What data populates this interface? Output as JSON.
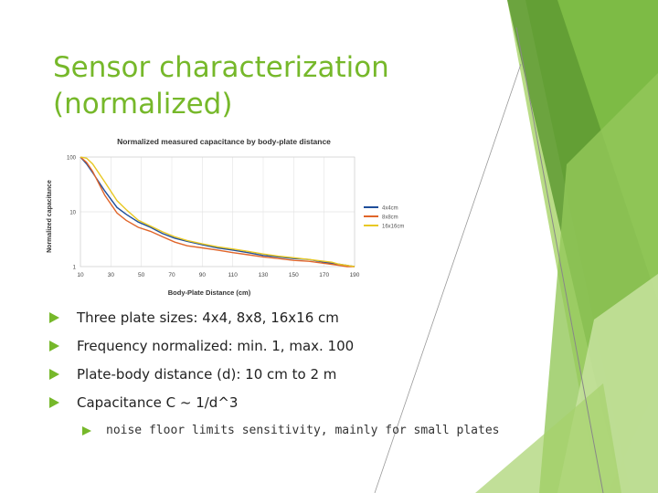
{
  "slide": {
    "title_lines": [
      "Sensor characterization",
      "(normalized)"
    ],
    "bullets": [
      "Three plate sizes: 4x4, 8x8, 16x16 cm",
      "Frequency normalized: min. 1, max. 100",
      "Plate-body distance (d): 10 cm to 2 m",
      "Capacitance C ~ 1/d^3"
    ],
    "sub_bullet": "noise floor limits sensitivity, mainly for small plates",
    "colors": {
      "accent": "#76B82A",
      "dark_green": "#5A9A2E",
      "light_green": "#B6D97A"
    }
  },
  "chart_data": {
    "type": "line",
    "title": "Normalized measured capacitance by body-plate distance",
    "xlabel": "Body-Plate Distance (cm)",
    "ylabel": "Normalized capacitance",
    "x_categories": [
      "10",
      "30",
      "50",
      "70",
      "90",
      "110",
      "130",
      "150",
      "170",
      "190"
    ],
    "y_scale": "log",
    "y_ticks": [
      "100",
      "10",
      "1"
    ],
    "ylim": [
      1,
      100
    ],
    "grid": true,
    "legend_position": "right",
    "series": [
      {
        "name": "4x4cm",
        "color": "#1F4E9A",
        "values": [
          100,
          75,
          52,
          24,
          12,
          9,
          6.5,
          5.2,
          4,
          3.3,
          2.9,
          2.5,
          2.2,
          2.0,
          1.8,
          1.6,
          1.5,
          1.4,
          1.35,
          1.2,
          1.15,
          1.1,
          1.05,
          1.0
        ],
        "x": [
          10,
          14,
          18,
          26,
          34,
          40,
          48,
          56,
          64,
          72,
          80,
          90,
          100,
          110,
          120,
          130,
          140,
          150,
          160,
          170,
          175,
          180,
          185,
          190
        ]
      },
      {
        "name": "8x8cm",
        "color": "#E0652A",
        "values": [
          100,
          80,
          55,
          20,
          9.5,
          7,
          5.2,
          4.4,
          3.5,
          2.8,
          2.4,
          2.2,
          2.0,
          1.8,
          1.65,
          1.5,
          1.4,
          1.3,
          1.25,
          1.15,
          1.1,
          1.05,
          1.0,
          1.0
        ],
        "x": [
          10,
          14,
          18,
          26,
          34,
          40,
          48,
          56,
          64,
          72,
          80,
          90,
          100,
          110,
          120,
          130,
          140,
          150,
          160,
          170,
          175,
          180,
          185,
          190
        ]
      },
      {
        "name": "16x16cm",
        "color": "#E8C823",
        "values": [
          100,
          95,
          75,
          35,
          16,
          11,
          7,
          5.5,
          4.3,
          3.5,
          3.0,
          2.6,
          2.3,
          2.1,
          1.9,
          1.7,
          1.55,
          1.45,
          1.35,
          1.25,
          1.2,
          1.1,
          1.05,
          1.0
        ],
        "x": [
          10,
          14,
          18,
          26,
          34,
          40,
          48,
          56,
          64,
          72,
          80,
          90,
          100,
          110,
          120,
          130,
          140,
          150,
          160,
          170,
          175,
          180,
          185,
          190
        ]
      }
    ]
  }
}
